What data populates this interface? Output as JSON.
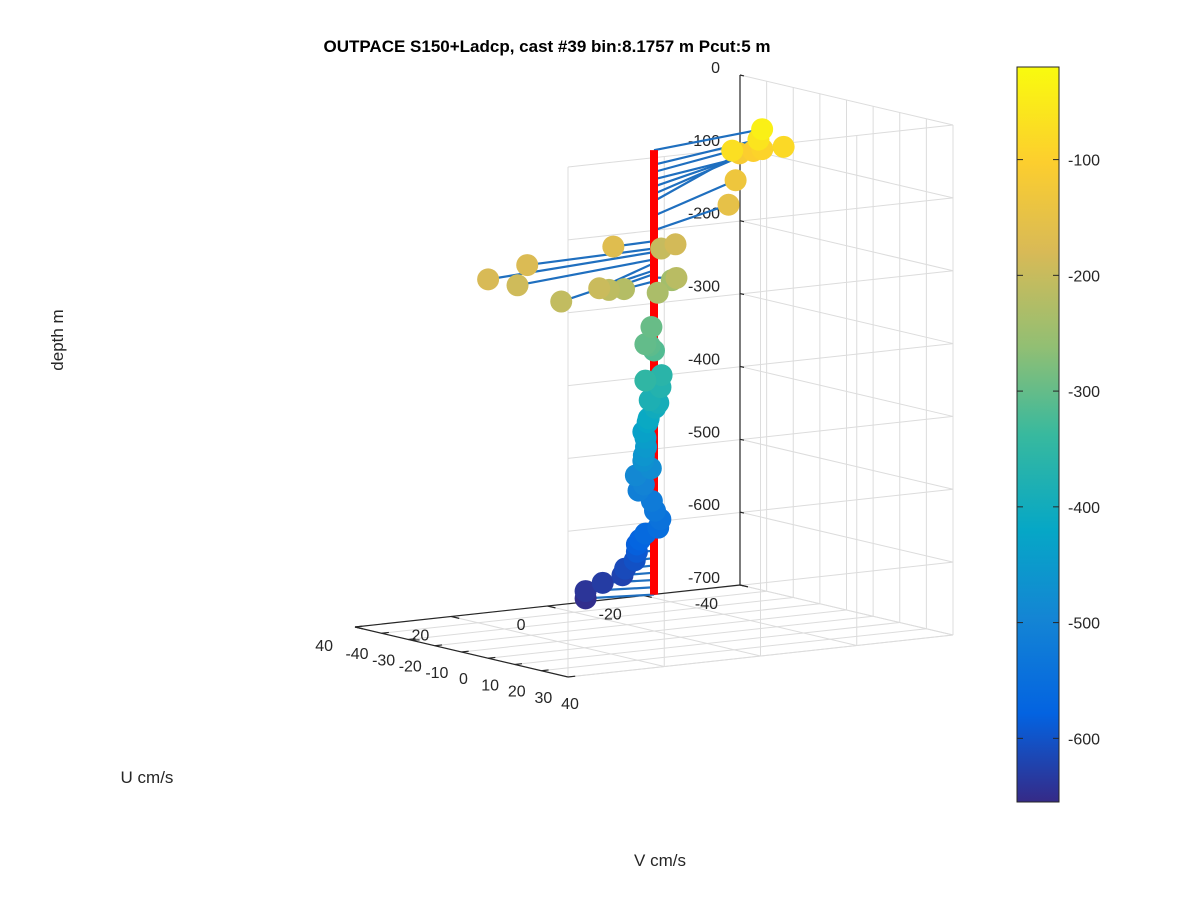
{
  "chart_data": {
    "type": "scatter",
    "title": "OUTPACE S150+Ladcp, cast #39 bin:8.1757 m  Pcut:5 m",
    "xlabel": "V cm/s",
    "ylabel": "U cm/s",
    "zlabel": "depth m",
    "xlim": [
      -40,
      40
    ],
    "ylim": [
      -40,
      40
    ],
    "zlim": [
      -700,
      0
    ],
    "xticks": [
      "-40",
      "-30",
      "-20",
      "-10",
      "0",
      "10",
      "20",
      "30",
      "40"
    ],
    "yticks": [
      "-40",
      "-20",
      "0",
      "20",
      "40"
    ],
    "zticks": [
      "0",
      "-100",
      "-200",
      "-300",
      "-400",
      "-500",
      "-600",
      "-700"
    ],
    "grid": true,
    "colorbar": {
      "position": "right",
      "colormap": "parula",
      "range": [
        -655,
        -20
      ],
      "ticks": [
        "-100",
        "-200",
        "-300",
        "-400",
        "-500",
        "-600"
      ]
    },
    "staff_color": "#ff0000",
    "stick_color": "#1f6fbf",
    "points": [
      {
        "depth": -40,
        "v": -10,
        "u": -28
      },
      {
        "depth": -60,
        "v": -15,
        "u": -30
      },
      {
        "depth": -70,
        "v": -14,
        "u": -24
      },
      {
        "depth": -80,
        "v": -20,
        "u": -38
      },
      {
        "depth": -90,
        "v": -28,
        "u": -38
      },
      {
        "depth": -100,
        "v": -35,
        "u": -40
      },
      {
        "depth": -110,
        "v": -42,
        "u": -41
      },
      {
        "depth": -130,
        "v": -29,
        "u": -33
      },
      {
        "depth": -150,
        "v": -19,
        "u": -26
      },
      {
        "depth": -165,
        "v": 1,
        "u": 9
      },
      {
        "depth": -175,
        "v": 3,
        "u": 28
      },
      {
        "depth": -180,
        "v": 10,
        "u": 40
      },
      {
        "depth": -185,
        "v": -10,
        "u": -10
      },
      {
        "depth": -190,
        "v": 12,
        "u": 35
      },
      {
        "depth": -195,
        "v": 21,
        "u": 23
      },
      {
        "depth": -200,
        "v": -19,
        "u": -12
      },
      {
        "depth": -205,
        "v": 23,
        "u": 32
      },
      {
        "depth": -210,
        "v": 12,
        "u": 16
      },
      {
        "depth": -215,
        "v": 3,
        "u": -3
      },
      {
        "depth": -220,
        "v": 5,
        "u": 9
      },
      {
        "depth": -230,
        "v": 5,
        "u": 2
      },
      {
        "depth": -240,
        "v": -15,
        "u": -12
      },
      {
        "depth": -295,
        "v": -10,
        "u": -5
      },
      {
        "depth": -300,
        "v": 4,
        "u": 4
      },
      {
        "depth": -305,
        "v": 2,
        "u": 2
      },
      {
        "depth": -315,
        "v": 0,
        "u": 0
      },
      {
        "depth": -350,
        "v": 4,
        "u": 4
      },
      {
        "depth": -360,
        "v": -8,
        "u": -6
      },
      {
        "depth": -370,
        "v": -3,
        "u": -3
      },
      {
        "depth": -380,
        "v": 2,
        "u": 2
      },
      {
        "depth": -390,
        "v": -2,
        "u": -2
      },
      {
        "depth": -400,
        "v": -5,
        "u": -3
      },
      {
        "depth": -410,
        "v": -2,
        "u": 0
      },
      {
        "depth": -420,
        "v": -6,
        "u": -2
      },
      {
        "depth": -430,
        "v": -4,
        "u": 0
      },
      {
        "depth": -440,
        "v": -5,
        "u": -1
      },
      {
        "depth": -450,
        "v": -3,
        "u": 0
      },
      {
        "depth": -460,
        "v": -2,
        "u": 1
      },
      {
        "depth": -470,
        "v": -4,
        "u": 0
      },
      {
        "depth": -480,
        "v": -3,
        "u": -1
      },
      {
        "depth": -490,
        "v": -5,
        "u": 1
      },
      {
        "depth": -500,
        "v": -2,
        "u": 1
      },
      {
        "depth": -510,
        "v": -4,
        "u": 1
      },
      {
        "depth": -520,
        "v": 1,
        "u": 1
      },
      {
        "depth": -530,
        "v": 4,
        "u": 2
      },
      {
        "depth": -540,
        "v": 6,
        "u": 2
      },
      {
        "depth": -550,
        "v": 7,
        "u": 3
      },
      {
        "depth": -560,
        "v": 4,
        "u": 4
      },
      {
        "depth": -570,
        "v": 2,
        "u": 4
      },
      {
        "depth": -580,
        "v": -1,
        "u": 3
      },
      {
        "depth": -590,
        "v": -1,
        "u": 3
      },
      {
        "depth": -600,
        "v": 0,
        "u": 4
      },
      {
        "depth": -610,
        "v": 0,
        "u": 6
      },
      {
        "depth": -620,
        "v": -1,
        "u": 6
      },
      {
        "depth": -630,
        "v": -3,
        "u": 9
      },
      {
        "depth": -640,
        "v": -4,
        "u": 12
      },
      {
        "depth": -650,
        "v": -4,
        "u": 12
      }
    ]
  }
}
